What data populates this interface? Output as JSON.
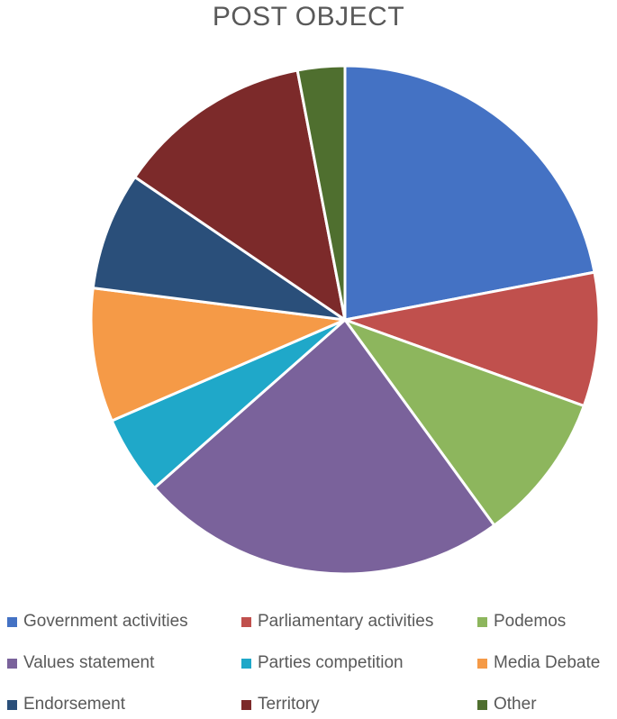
{
  "chart_data": {
    "type": "pie",
    "title": "POST OBJECT",
    "categories": [
      "Government activities",
      "Parliamentary activities",
      "Podemos",
      "Values statement",
      "Parties competition",
      "Media Debate",
      "Endorsement",
      "Territory",
      "Other"
    ],
    "values": [
      22.0,
      8.5,
      9.5,
      23.5,
      5.0,
      8.5,
      7.5,
      12.5,
      3.0
    ],
    "colors": [
      "#4472C4",
      "#C0504D",
      "#8DB65D",
      "#7A629B",
      "#1FA8C9",
      "#F59A47",
      "#2A4F7A",
      "#7C2A2A",
      "#4F6F2F"
    ],
    "legend_position": "bottom",
    "start_angle": "12 o'clock",
    "direction": "clockwise"
  }
}
